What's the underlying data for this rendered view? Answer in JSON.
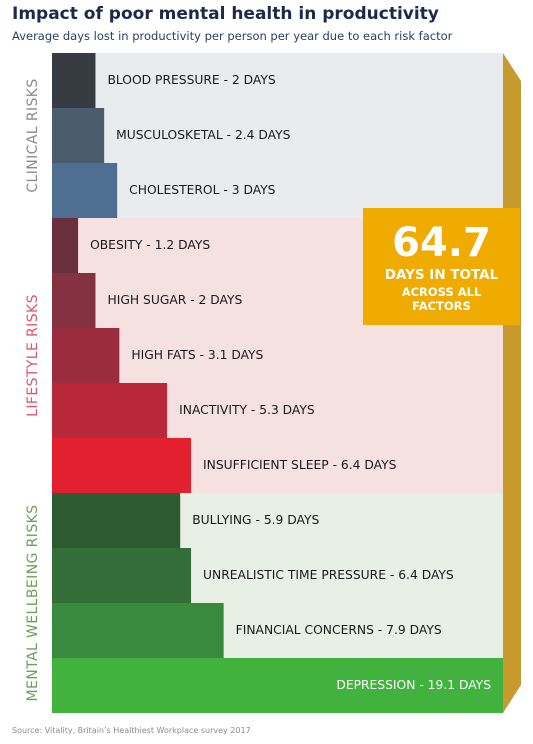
{
  "title": "Impact of poor mental health in productivity",
  "subtitle": "Average days lost in productivity per person per year due to each risk factor",
  "source": "Source: Vitality, Britain’s Healthiest Workplace survey 2017",
  "total": {
    "value": "64.7",
    "text": "DAYS IN TOTAL",
    "subtext": "ACROSS ALL FACTORS"
  },
  "colors": {
    "clinical_band": "#e9ecef",
    "lifestyle_band": "#f6e1e1",
    "wellbeing_band": "#e8efe5",
    "arrow": "#c79a2e",
    "clinical_group_label": "#8a8a8a",
    "lifestyle_group_label": "#e0566c",
    "wellbeing_group_label": "#6e9e5a",
    "bar_text": "#1a1a1a",
    "depression_text": "#ffffff"
  },
  "chart_data": {
    "type": "bar",
    "orientation": "horizontal",
    "unit": "days",
    "groups": [
      {
        "name": "CLINICAL RISKS",
        "items": [
          {
            "category": "BLOOD PRESSURE",
            "value": 2,
            "label": "BLOOD PRESSURE - 2 DAYS",
            "color": "#363b42"
          },
          {
            "category": "MUSCULOSKETAL",
            "value": 2.4,
            "label": "MUSCULOSKETAL - 2.4 DAYS",
            "color": "#4b5c6e"
          },
          {
            "category": "CHOLESTEROL",
            "value": 3,
            "label": "CHOLESTEROL - 3 DAYS",
            "color": "#4e6f92"
          }
        ]
      },
      {
        "name": "LIFESTYLE RISKS",
        "items": [
          {
            "category": "OBESITY",
            "value": 1.2,
            "label": "OBESITY - 1.2 DAYS",
            "color": "#6a2f3e"
          },
          {
            "category": "HIGH SUGAR",
            "value": 2,
            "label": "HIGH SUGAR - 2 DAYS",
            "color": "#843242"
          },
          {
            "category": "HIGH FATS",
            "value": 3.1,
            "label": "HIGH FATS - 3.1 DAYS",
            "color": "#9b2c3f"
          },
          {
            "category": "INACTIVITY",
            "value": 5.3,
            "label": "INACTIVITY - 5.3 DAYS",
            "color": "#b8283a"
          },
          {
            "category": "INSUFFICIENT SLEEP",
            "value": 6.4,
            "label": "INSUFFICIENT SLEEP - 6.4 DAYS",
            "color": "#e2202f"
          }
        ]
      },
      {
        "name": "MENTAL WELLBEING RISKS",
        "items": [
          {
            "category": "BULLYING",
            "value": 5.9,
            "label": "BULLYING - 5.9 DAYS",
            "color": "#2e5a32"
          },
          {
            "category": "UNREALISTIC TIME PRESSURE",
            "value": 6.4,
            "label": "UNREALISTIC TIME PRESSURE - 6.4 DAYS",
            "color": "#336d37"
          },
          {
            "category": "FINANCIAL CONCERNS",
            "value": 7.9,
            "label": "FINANCIAL CONCERNS - 7.9 DAYS",
            "color": "#3a8a3d"
          },
          {
            "category": "DEPRESSION",
            "value": 19.1,
            "label": "DEPRESSION - 19.1 DAYS",
            "color": "#42b23e"
          }
        ]
      }
    ]
  }
}
